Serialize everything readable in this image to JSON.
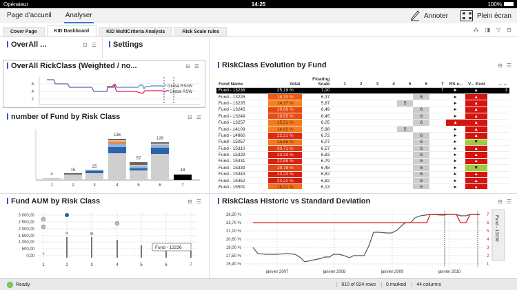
{
  "statusbar": {
    "carrier": "Opérateur",
    "time": "14:25",
    "battery": "100%"
  },
  "topnav": {
    "items": [
      {
        "label": "Page d'accueil",
        "active": false
      },
      {
        "label": "Analyser",
        "active": true
      }
    ],
    "annotate_label": "Annoter",
    "fullscreen_label": "Plein écran"
  },
  "tabs": [
    {
      "label": "Cover Page",
      "active": false
    },
    {
      "label": "KID Dashboard",
      "active": true
    },
    {
      "label": "KID MultiCriteria Analysis",
      "active": false
    },
    {
      "label": "Risk Scale rules",
      "active": false
    }
  ],
  "panels": {
    "overall_small": {
      "title": "OverAll ..."
    },
    "settings": {
      "title": "Settings"
    },
    "overall_chart": {
      "title": "OverAll RickClass (Weighted / no..."
    },
    "fund_count": {
      "title": "number of Fund by Risk Class"
    },
    "evolution": {
      "title": "RiskClass Evolution by Fund"
    },
    "aum": {
      "title": "Fund AUM by Risk Class"
    },
    "historic": {
      "title": "RiskClass Historic vs Standard Deviation"
    }
  },
  "table": {
    "columns": [
      "Fund Name",
      "Volat",
      "Floating Scale",
      "1",
      "2",
      "3",
      "4",
      "5",
      "6",
      "7",
      "RS e...",
      "V... Evol",
      "... ..."
    ],
    "rows": [
      {
        "name": "Fund - 13236",
        "volat": "25,19 %",
        "scale": "7,00",
        "cls": "7",
        "col": 7,
        "rs": "►",
        "evol": "▲",
        "extra": "3",
        "selected": true,
        "vcolor": "#000000"
      },
      {
        "name": "Fund - 13228",
        "volat": "18,70 %",
        "scale": "6,37",
        "cls": "6",
        "col": 6,
        "rs": "►",
        "evol": "▲",
        "vcolor": "#ee5a12"
      },
      {
        "name": "Fund - 13235",
        "volat": "14,37 %",
        "scale": "5,87",
        "cls": "5",
        "col": 5,
        "rs": "►",
        "evol": "▲",
        "vcolor": "#f5821e"
      },
      {
        "name": "Fund - 13245",
        "volat": "19,86 %",
        "scale": "6,49",
        "cls": "6",
        "col": 6,
        "rs": "►",
        "evol": "▲",
        "vcolor": "#e84612"
      },
      {
        "name": "Fund - 13249",
        "volat": "19,55 %",
        "scale": "6,45",
        "cls": "6",
        "col": 6,
        "rs": "►",
        "evol": "▲",
        "vcolor": "#ea4c12"
      },
      {
        "name": "Fund - 13257",
        "volat": "15,51 %",
        "scale": "6,05",
        "cls": "6",
        "col": 6,
        "rs": "▲",
        "rs_red": true,
        "evol": "▲",
        "vcolor": "#f47a1c"
      },
      {
        "name": "Fund - 14109",
        "volat": "14,92 %",
        "scale": "5,98",
        "cls": "5",
        "col": 5,
        "rs": "►",
        "evol": "▲",
        "vcolor": "#f5801e"
      },
      {
        "name": "Fund - 14960",
        "volat": "22,21 %",
        "scale": "6,72",
        "cls": "6",
        "col": 6,
        "rs": "►",
        "evol": "▲",
        "vcolor": "#dd2a10"
      },
      {
        "name": "Fund - 15057",
        "volat": "15,66 %",
        "scale": "6,07",
        "cls": "6",
        "col": 6,
        "rs": "►",
        "evol": "▼",
        "evol_green": true,
        "vcolor": "#f4781c"
      },
      {
        "name": "Fund - 15310",
        "volat": "20,71 %",
        "scale": "6,57",
        "cls": "6",
        "col": 6,
        "rs": "►",
        "evol": "▲",
        "vcolor": "#e43c12"
      },
      {
        "name": "Fund - 15329",
        "volat": "23,33 %",
        "scale": "6,83",
        "cls": "6",
        "col": 6,
        "rs": "►",
        "evol": "▲",
        "vcolor": "#d8200f"
      },
      {
        "name": "Fund - 15331",
        "volat": "22,88 %",
        "scale": "6,79",
        "cls": "6",
        "col": 6,
        "rs": "►",
        "evol": "▲",
        "vcolor": "#da2410"
      },
      {
        "name": "Fund - 15339",
        "volat": "19,78 %",
        "scale": "6,48",
        "cls": "6",
        "col": 6,
        "rs": "►",
        "evol": "▼",
        "evol_green": true,
        "vcolor": "#e84812"
      },
      {
        "name": "Fund - 15343",
        "volat": "23,23 %",
        "scale": "6,82",
        "cls": "6",
        "col": 6,
        "rs": "►",
        "evol": "▲",
        "vcolor": "#d8200f"
      },
      {
        "name": "Fund - 15352",
        "volat": "23,22 %",
        "scale": "6,82",
        "cls": "6",
        "col": 6,
        "rs": "►",
        "evol": "▲",
        "vcolor": "#d8200f"
      },
      {
        "name": "Fund - 15501",
        "volat": "16,31 %",
        "scale": "6,13",
        "cls": "6",
        "col": 6,
        "rs": "►",
        "evol": "▲",
        "vcolor": "#f2701a"
      }
    ]
  },
  "footer": {
    "status": "Ready.",
    "rows": "910 of 924 rows",
    "marked": "0 marked",
    "columns": "44 columns"
  },
  "chart_data": [
    {
      "type": "line",
      "title": "OverAll RickClass (Weighted / no...",
      "yticks": [
        2,
        4,
        6
      ],
      "series": [
        {
          "name": "Global RSnW",
          "color": "#4a7fc4"
        },
        {
          "name": "Global RSW",
          "color": "#e0245e"
        }
      ]
    },
    {
      "type": "bar",
      "title": "number of Fund by Risk Class",
      "categories": [
        "1",
        "2",
        "3",
        "4",
        "5",
        "6",
        "7"
      ],
      "values": [
        4,
        15,
        25,
        136,
        57,
        128,
        18
      ],
      "stacked": true
    },
    {
      "type": "scatter",
      "title": "Fund AUM by Risk Class",
      "yticks": [
        "0,00",
        "500,00",
        "1 000,00",
        "1 500,00",
        "2 000,00",
        "2 500,00",
        "3 000,00"
      ],
      "xticks": [
        "1",
        "2",
        "3",
        "4",
        "5",
        "6",
        "7"
      ],
      "tooltip": "Fund - 13236"
    },
    {
      "type": "line",
      "title": "RiskClass Historic vs Standard Deviation",
      "yleft": [
        "15,90 %",
        "17,50 %",
        "19,00 %",
        "20,60 %",
        "22,10 %",
        "23,70 %",
        "26,20 %"
      ],
      "yright": [
        "1",
        "2",
        "3",
        "4",
        "5",
        "6",
        "7"
      ],
      "xticks": [
        "janvier 2007",
        "janvier 2008",
        "janvier 2009",
        "janvier 2010"
      ],
      "legend": "Fund - 13236"
    }
  ]
}
